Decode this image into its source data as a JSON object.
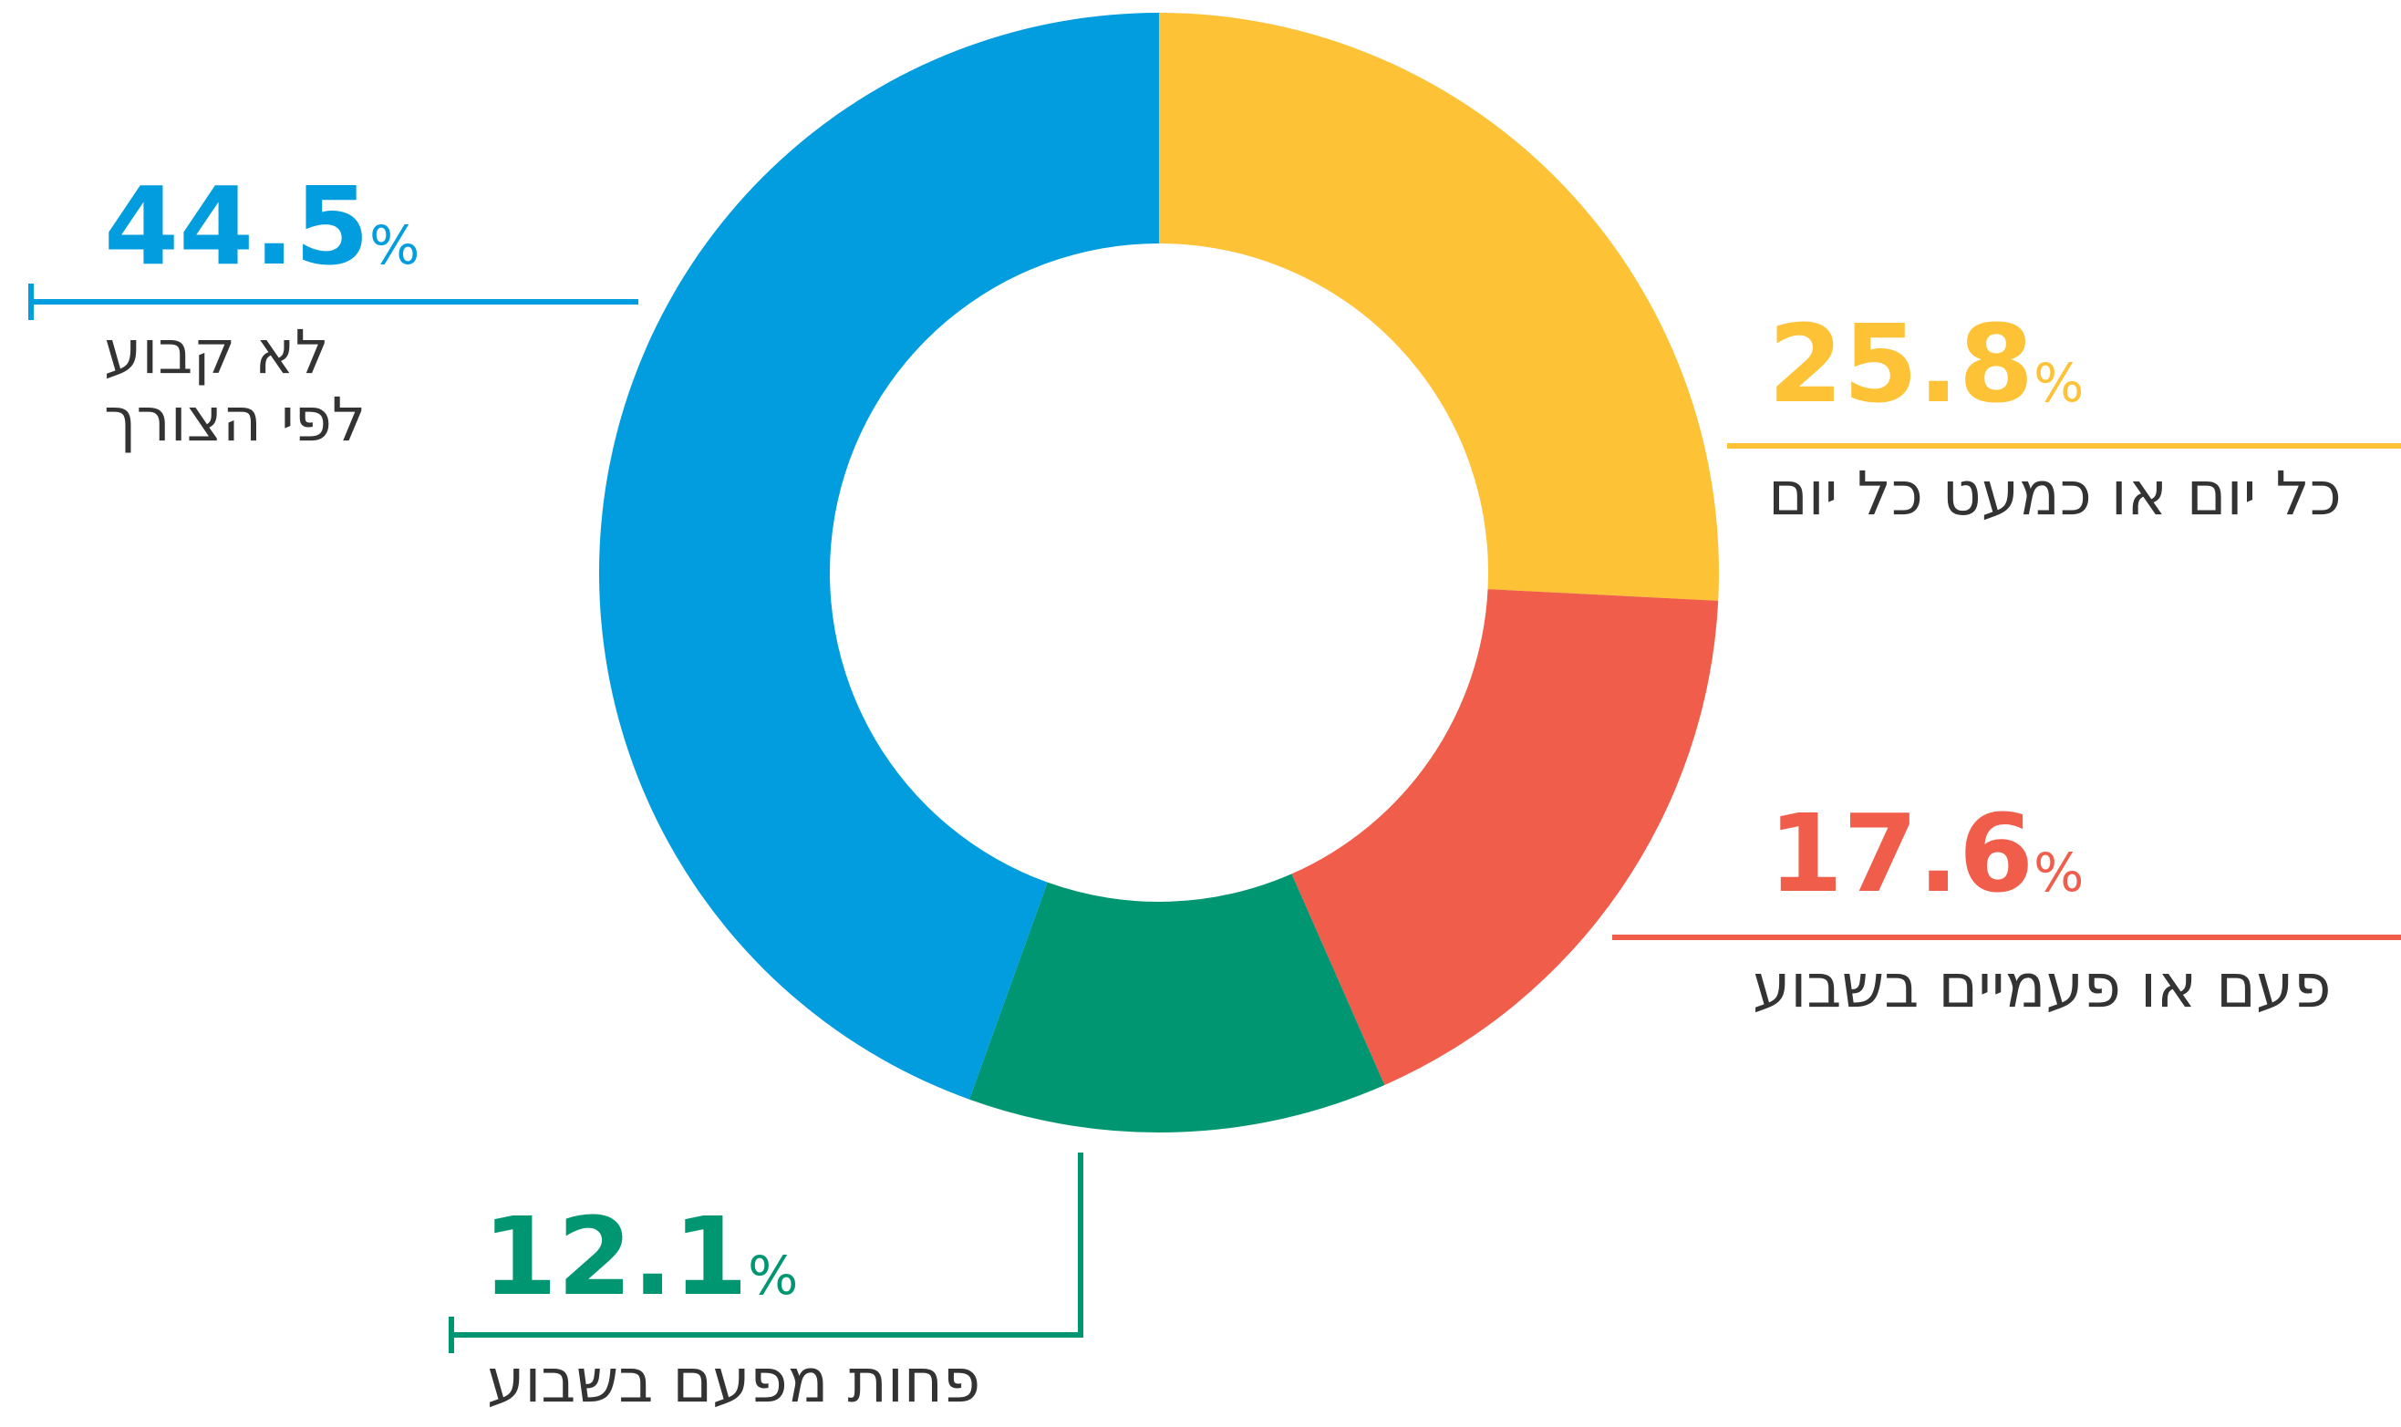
{
  "chart_data": {
    "type": "donut",
    "categories": [
      "כל יום או כמעט כל יום",
      "פעם או פעמיים בשבוע",
      "פחות מפעם בשבוע",
      "לא קבוע לפי הצורך"
    ],
    "values": [
      25.8,
      17.6,
      12.1,
      44.5
    ],
    "unit": "%",
    "colors": [
      "#fec236",
      "#f05d4a",
      "#009672",
      "#029ddf"
    ]
  }
}
